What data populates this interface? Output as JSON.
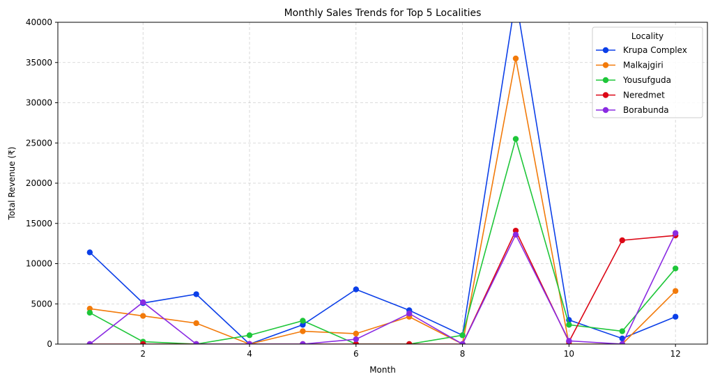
{
  "chart_data": {
    "type": "line",
    "title": "Monthly Sales Trends for Top 5 Localities",
    "xlabel": "Month",
    "ylabel": "Total Revenue (₹)",
    "xlim": [
      0.4,
      12.6
    ],
    "ylim": [
      0,
      40000
    ],
    "xticks": [
      2,
      4,
      6,
      8,
      10,
      12
    ],
    "yticks": [
      0,
      5000,
      10000,
      15000,
      20000,
      25000,
      30000,
      35000,
      40000
    ],
    "grid": true,
    "legend_title": "Locality",
    "legend_position": "top-right",
    "x": [
      1,
      2,
      3,
      4,
      5,
      6,
      7,
      8,
      9,
      10,
      11,
      12
    ],
    "series": [
      {
        "name": "Krupa Complex",
        "color": "#0b3fe8",
        "values": [
          11400,
          5100,
          6200,
          0,
          2400,
          6800,
          4200,
          1100,
          43000,
          3000,
          700,
          3400
        ]
      },
      {
        "name": "Malkajgiri",
        "color": "#f27a0a",
        "values": [
          4400,
          3500,
          2600,
          0,
          1600,
          1300,
          3400,
          0,
          35500,
          0,
          0,
          6600
        ]
      },
      {
        "name": "Yousufguda",
        "color": "#1ec639",
        "values": [
          3900,
          300,
          0,
          1100,
          2900,
          0,
          0,
          1100,
          25500,
          2400,
          1600,
          9400
        ]
      },
      {
        "name": "Neredmet",
        "color": "#dc0716",
        "values": [
          0,
          0,
          0,
          0,
          0,
          0,
          0,
          0,
          14100,
          300,
          12900,
          13500
        ]
      },
      {
        "name": "Borabunda",
        "color": "#8a2be2",
        "values": [
          0,
          5200,
          0,
          0,
          0,
          600,
          3800,
          0,
          13600,
          400,
          0,
          13800
        ]
      }
    ]
  }
}
